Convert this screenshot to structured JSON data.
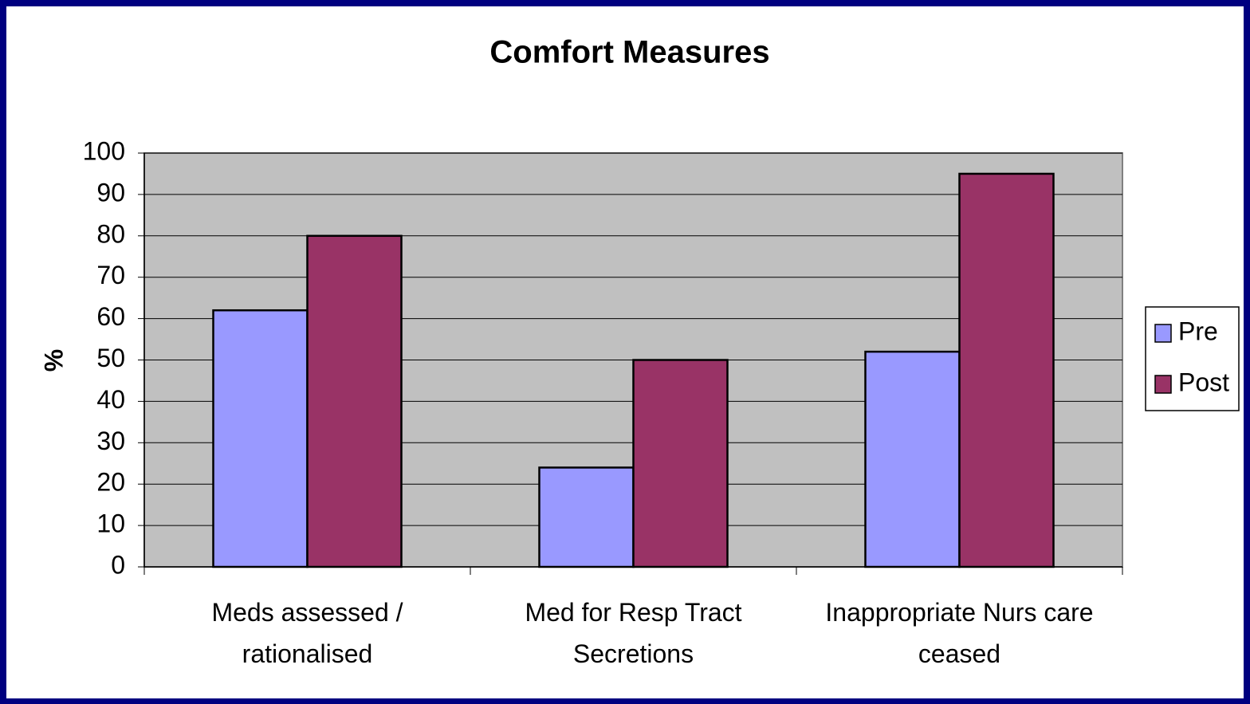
{
  "chart_data": {
    "type": "bar",
    "title": "Comfort Measures",
    "y_label": "%",
    "categories": [
      "Meds assessed / rationalised",
      "Med for Resp Tract Secretions",
      "Inappropriate Nurs care ceased"
    ],
    "series": [
      {
        "name": "Pre",
        "color": "#9999ff",
        "values": [
          62,
          24,
          52
        ]
      },
      {
        "name": "Post",
        "color": "#993366",
        "values": [
          80,
          50,
          95
        ]
      }
    ],
    "ylim": [
      0,
      100
    ],
    "yticks": [
      0,
      10,
      20,
      30,
      40,
      50,
      60,
      70,
      80,
      90,
      100
    ],
    "grid": true,
    "legend": "right"
  }
}
